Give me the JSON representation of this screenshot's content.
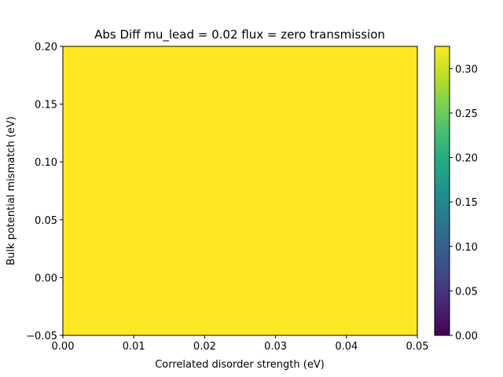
{
  "chart_data": {
    "type": "heatmap",
    "title": "Abs Diff mu_lead = 0.02 flux = zero transmission",
    "xlabel": "Correlated disorder strength (eV)",
    "ylabel": "Bulk potential mismatch (eV)",
    "xlim": [
      0.0,
      0.05
    ],
    "ylim": [
      -0.05,
      0.2
    ],
    "x_ticks": [
      "0.00",
      "0.01",
      "0.02",
      "0.03",
      "0.04",
      "0.05"
    ],
    "y_ticks": [
      "−0.05",
      "0.00",
      "0.05",
      "0.10",
      "0.15",
      "0.20"
    ],
    "x_tick_values": [
      0.0,
      0.01,
      0.02,
      0.03,
      0.04,
      0.05
    ],
    "y_tick_values": [
      -0.05,
      0.0,
      0.05,
      0.1,
      0.15,
      0.2
    ],
    "values": [
      [
        0.325
      ]
    ],
    "value_description_uniform": true,
    "colormap": "viridis",
    "colorbar": {
      "range": [
        0.0,
        0.325
      ],
      "ticks": [
        "0.00",
        "0.05",
        "0.10",
        "0.15",
        "0.20",
        "0.25",
        "0.30"
      ],
      "tick_values": [
        0.0,
        0.05,
        0.1,
        0.15,
        0.2,
        0.25,
        0.3
      ]
    },
    "grid": false,
    "fill_color": "#fde725"
  }
}
